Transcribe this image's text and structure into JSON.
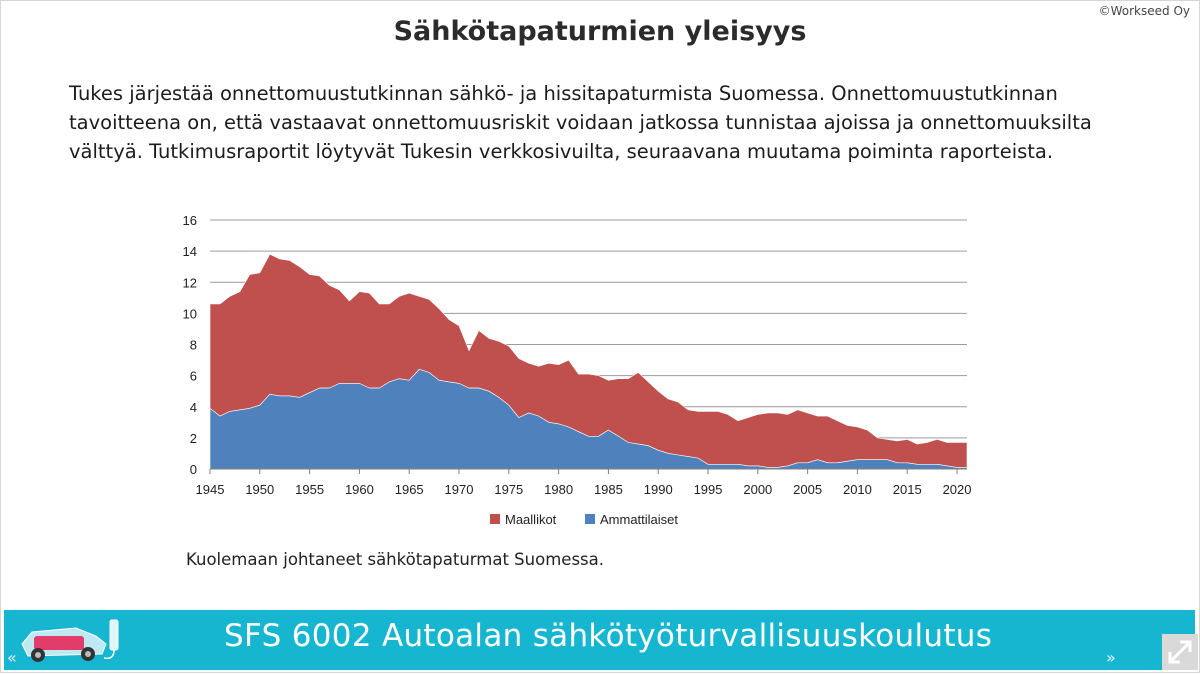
{
  "copyright": "©Workseed Oy",
  "title": "Sähkötapaturmien yleisyys",
  "intro": "Tukes järjestää onnettomuustutkinnan sähkö- ja hissitapaturmista Suomessa. Onnettomuustutkinnan tavoitteena on, että vastaavat onnettomuusriskit voidaan jatkossa tunnistaa ajoissa ja onnettomuuksilta välttyä. Tutkimusraportit löytyvät Tukesin verkkosivuilta, seuraavana muutama poiminta raporteista.",
  "caption": "Kuolemaan johtaneet sähkötapaturmat Suomessa.",
  "footer": {
    "title": "SFS 6002 Autoalan sähkötyöturvallisuuskoulutus",
    "prev": "«",
    "next": "»"
  },
  "colors": {
    "footer": "#17b6d0",
    "maallikot": "#c0504d",
    "ammattilaiset": "#4f81bd"
  },
  "icons": [
    "electric-car-icon",
    "charger-icon",
    "expand-icon",
    "double-chevron-left-icon",
    "double-chevron-right-icon"
  ],
  "chart_data": {
    "type": "area",
    "stacked": true,
    "x": [
      1945,
      1946,
      1947,
      1948,
      1949,
      1950,
      1951,
      1952,
      1953,
      1954,
      1955,
      1956,
      1957,
      1958,
      1959,
      1960,
      1961,
      1962,
      1963,
      1964,
      1965,
      1966,
      1967,
      1968,
      1969,
      1970,
      1971,
      1972,
      1973,
      1974,
      1975,
      1976,
      1977,
      1978,
      1979,
      1980,
      1981,
      1982,
      1983,
      1984,
      1985,
      1986,
      1987,
      1988,
      1989,
      1990,
      1991,
      1992,
      1993,
      1994,
      1995,
      1996,
      1997,
      1998,
      1999,
      2000,
      2001,
      2002,
      2003,
      2004,
      2005,
      2006,
      2007,
      2008,
      2009,
      2010,
      2011,
      2012,
      2013,
      2014,
      2015,
      2016,
      2017,
      2018,
      2019,
      2020,
      2021
    ],
    "series": [
      {
        "name": "Ammattilaiset",
        "color": "#4f81bd",
        "values": [
          3.9,
          3.4,
          3.7,
          3.8,
          3.9,
          4.1,
          4.8,
          4.7,
          4.7,
          4.6,
          4.9,
          5.2,
          5.2,
          5.5,
          5.5,
          5.5,
          5.2,
          5.2,
          5.6,
          5.8,
          5.7,
          6.4,
          6.2,
          5.7,
          5.6,
          5.5,
          5.2,
          5.2,
          5.0,
          4.6,
          4.1,
          3.3,
          3.6,
          3.4,
          3.0,
          2.9,
          2.7,
          2.4,
          2.1,
          2.1,
          2.5,
          2.1,
          1.7,
          1.6,
          1.5,
          1.2,
          1.0,
          0.9,
          0.8,
          0.7,
          0.3,
          0.3,
          0.3,
          0.3,
          0.2,
          0.2,
          0.1,
          0.1,
          0.2,
          0.4,
          0.4,
          0.6,
          0.4,
          0.4,
          0.5,
          0.6,
          0.6,
          0.6,
          0.6,
          0.4,
          0.4,
          0.3,
          0.3,
          0.3,
          0.2,
          0.1,
          0.1
        ]
      },
      {
        "name": "Maallikot",
        "color": "#c0504d",
        "values": [
          6.7,
          7.2,
          7.4,
          7.6,
          8.6,
          8.5,
          9.0,
          8.8,
          8.7,
          8.4,
          7.6,
          7.2,
          6.6,
          6.0,
          5.3,
          5.9,
          6.1,
          5.4,
          5.0,
          5.3,
          5.6,
          4.7,
          4.7,
          4.6,
          4.0,
          3.7,
          2.4,
          3.7,
          3.4,
          3.6,
          3.8,
          3.8,
          3.2,
          3.2,
          3.8,
          3.8,
          4.3,
          3.7,
          4.0,
          3.9,
          3.2,
          3.7,
          4.1,
          4.6,
          4.1,
          3.8,
          3.5,
          3.4,
          3.0,
          3.0,
          3.4,
          3.4,
          3.2,
          2.8,
          3.1,
          3.3,
          3.5,
          3.5,
          3.3,
          3.4,
          3.2,
          2.8,
          3.0,
          2.7,
          2.3,
          2.1,
          1.9,
          1.4,
          1.3,
          1.4,
          1.5,
          1.3,
          1.4,
          1.6,
          1.5,
          1.6,
          1.6
        ]
      }
    ],
    "ylim": [
      0,
      16
    ],
    "y_ticks": [
      0,
      2,
      4,
      6,
      8,
      10,
      12,
      14,
      16
    ],
    "xlim": [
      1945,
      2021
    ],
    "x_ticks": [
      1945,
      1950,
      1955,
      1960,
      1965,
      1970,
      1975,
      1980,
      1985,
      1990,
      1995,
      2000,
      2005,
      2010,
      2015,
      2020
    ],
    "grid": "horizontal",
    "legend": [
      {
        "label": "Maallikot",
        "color": "#c0504d"
      },
      {
        "label": "Ammattilaiset",
        "color": "#4f81bd"
      }
    ],
    "legend_position": "bottom"
  }
}
